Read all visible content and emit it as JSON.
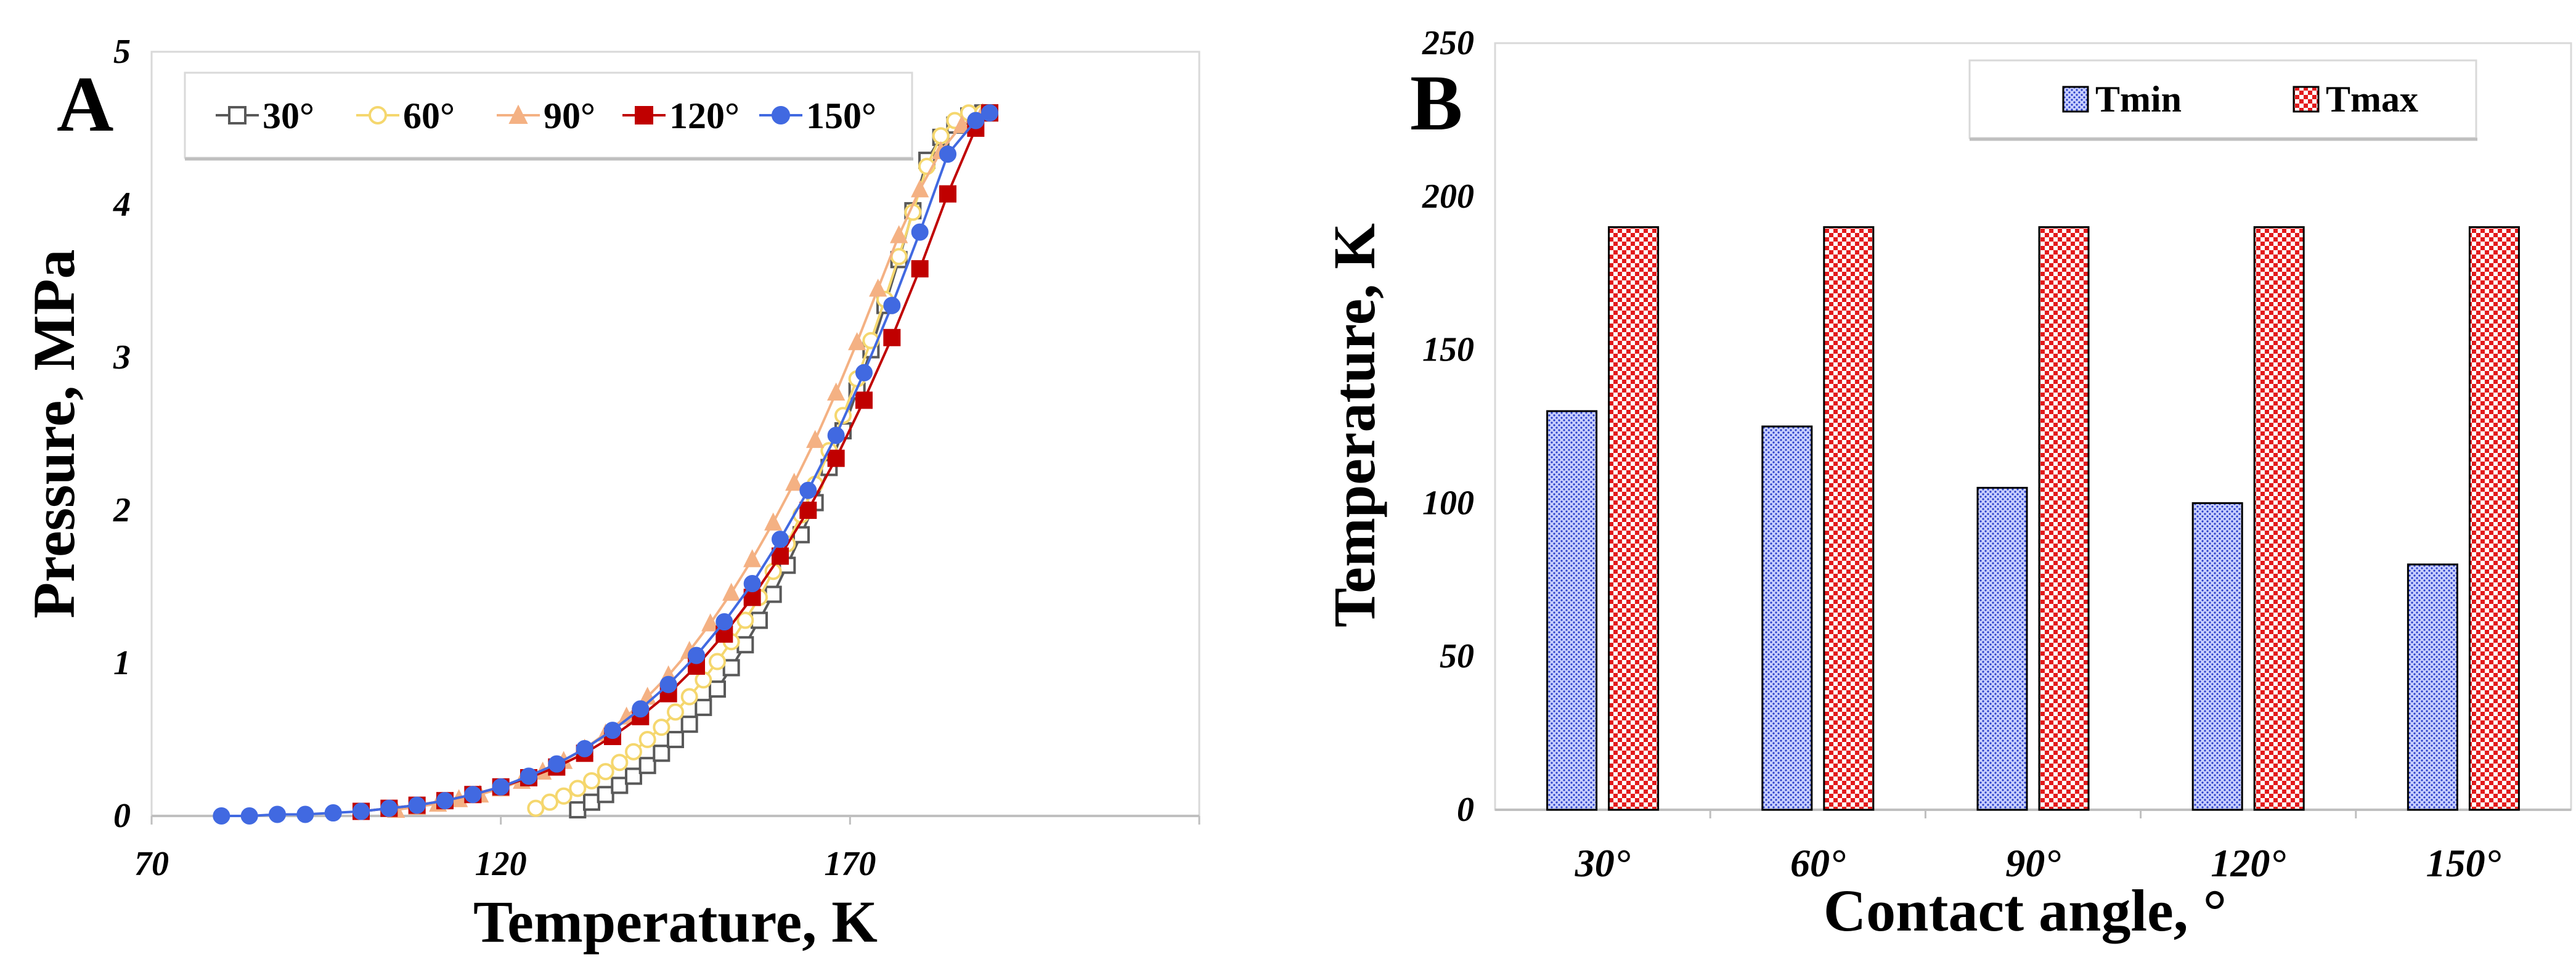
{
  "chart_data": [
    {
      "panel": "A",
      "type": "line",
      "xlabel": "Temperature, K",
      "ylabel": "Pressure, MPa",
      "xlim": [
        70,
        220
      ],
      "ylim": [
        0,
        5
      ],
      "xticks": [
        70,
        120,
        170
      ],
      "yticks": [
        0,
        1,
        2,
        3,
        4,
        5
      ],
      "legend_position": "top-left",
      "series": [
        {
          "name": "30°",
          "color": "#595959",
          "marker": "square-open",
          "x": [
            131,
            133,
            135,
            137,
            139,
            141,
            143,
            145,
            147,
            149,
            151,
            153,
            155,
            157,
            159,
            161,
            163,
            165,
            167,
            169,
            171,
            173,
            175,
            177,
            179,
            181,
            183,
            185,
            187,
            189,
            190
          ],
          "y": [
            0.04,
            0.09,
            0.14,
            0.2,
            0.26,
            0.33,
            0.41,
            0.5,
            0.6,
            0.71,
            0.83,
            0.97,
            1.12,
            1.28,
            1.45,
            1.64,
            1.84,
            2.05,
            2.28,
            2.52,
            2.78,
            3.05,
            3.34,
            3.64,
            3.96,
            4.29,
            4.44,
            4.52,
            4.58,
            4.6,
            4.6
          ]
        },
        {
          "name": "60°",
          "color": "#f5d76e",
          "marker": "circle-open",
          "x": [
            125,
            127,
            129,
            131,
            133,
            135,
            137,
            139,
            141,
            143,
            145,
            147,
            149,
            151,
            153,
            155,
            157,
            159,
            161,
            163,
            165,
            167,
            169,
            171,
            173,
            175,
            177,
            179,
            181,
            183,
            185,
            187,
            189
          ],
          "y": [
            0.05,
            0.09,
            0.13,
            0.18,
            0.23,
            0.29,
            0.35,
            0.42,
            0.5,
            0.58,
            0.68,
            0.78,
            0.89,
            1.01,
            1.14,
            1.28,
            1.43,
            1.6,
            1.78,
            1.97,
            2.17,
            2.39,
            2.62,
            2.86,
            3.11,
            3.38,
            3.66,
            3.95,
            4.25,
            4.45,
            4.55,
            4.6,
            4.6
          ]
        },
        {
          "name": "90°",
          "color": "#f4b183",
          "marker": "triangle",
          "x": [
            105,
            108,
            111,
            114,
            117,
            120,
            123,
            126,
            129,
            132,
            135,
            138,
            141,
            144,
            147,
            150,
            153,
            156,
            159,
            162,
            165,
            168,
            171,
            174,
            177,
            180,
            183,
            186,
            189
          ],
          "y": [
            0.04,
            0.06,
            0.08,
            0.11,
            0.14,
            0.18,
            0.23,
            0.29,
            0.36,
            0.44,
            0.54,
            0.65,
            0.78,
            0.92,
            1.08,
            1.26,
            1.46,
            1.68,
            1.92,
            2.18,
            2.46,
            2.77,
            3.1,
            3.45,
            3.8,
            4.1,
            4.35,
            4.52,
            4.6
          ]
        },
        {
          "name": "120°",
          "color": "#c00000",
          "marker": "square",
          "x": [
            100,
            104,
            108,
            112,
            116,
            120,
            124,
            128,
            132,
            136,
            140,
            144,
            148,
            152,
            156,
            160,
            164,
            168,
            172,
            176,
            180,
            184,
            188,
            190
          ],
          "y": [
            0.03,
            0.05,
            0.07,
            0.1,
            0.14,
            0.19,
            0.25,
            0.32,
            0.41,
            0.52,
            0.65,
            0.8,
            0.98,
            1.19,
            1.43,
            1.7,
            2.0,
            2.34,
            2.72,
            3.13,
            3.58,
            4.07,
            4.5,
            4.6
          ]
        },
        {
          "name": "150°",
          "color": "#4169e1",
          "marker": "circle",
          "x": [
            80,
            84,
            88,
            92,
            96,
            100,
            104,
            108,
            112,
            116,
            120,
            124,
            128,
            132,
            136,
            140,
            144,
            148,
            152,
            156,
            160,
            164,
            168,
            172,
            176,
            180,
            184,
            188,
            190
          ],
          "y": [
            0.0,
            0.0,
            0.01,
            0.01,
            0.02,
            0.03,
            0.05,
            0.07,
            0.1,
            0.14,
            0.19,
            0.26,
            0.34,
            0.44,
            0.56,
            0.7,
            0.86,
            1.05,
            1.27,
            1.52,
            1.81,
            2.13,
            2.49,
            2.9,
            3.34,
            3.82,
            4.33,
            4.55,
            4.6
          ]
        }
      ]
    },
    {
      "panel": "B",
      "type": "bar",
      "xlabel": "Contact angle, °",
      "ylabel": "Temperature, K",
      "ylim": [
        0,
        250
      ],
      "yticks": [
        0,
        50,
        100,
        150,
        200,
        250
      ],
      "categories": [
        "30°",
        "60°",
        "90°",
        "120°",
        "150°"
      ],
      "legend_position": "top-right",
      "series": [
        {
          "name": "Tmin",
          "color": "#3a4fd6",
          "pattern": "dotted-blue",
          "values": [
            130,
            125,
            105,
            100,
            80
          ]
        },
        {
          "name": "Tmax",
          "color": "#e02020",
          "pattern": "checkered-red",
          "values": [
            190,
            190,
            190,
            190,
            190
          ]
        }
      ]
    }
  ]
}
